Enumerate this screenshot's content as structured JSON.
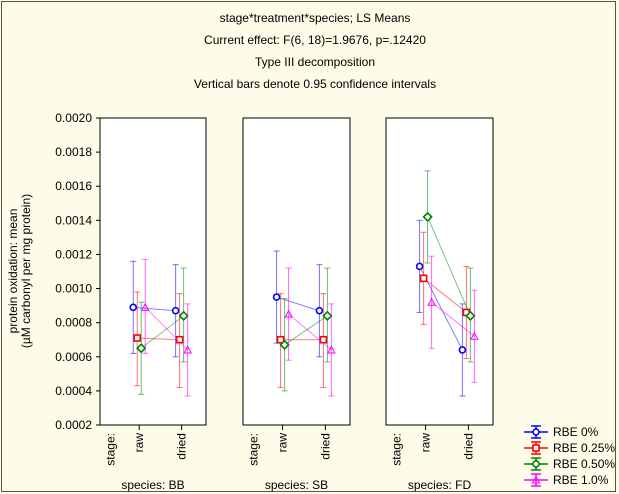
{
  "chart_data": {
    "type": "line",
    "title_lines": [
      "stage*treatment*species; LS Means",
      "Current effect: F(6, 18)=1.9676, p=.12420",
      "Type III decomposition",
      "Vertical bars denote 0.95 confidence intervals"
    ],
    "ylabel_lines": [
      "protein oxidation: mean",
      "(µM carbonyl per mg protein)"
    ],
    "ylim": [
      0.0002,
      0.002
    ],
    "yticks": [
      "0.0020",
      "0.0018",
      "0.0016",
      "0.0014",
      "0.0012",
      "0.0010",
      "0.0008",
      "0.0006",
      "0.0004",
      "0.0002"
    ],
    "stage_label": "stage:",
    "categories": [
      "raw",
      "dried"
    ],
    "panels": [
      {
        "label": "species: BB",
        "series": [
          {
            "name": "RBE 0%",
            "values": [
              0.00089,
              0.00087
            ],
            "ci_low": [
              0.00062,
              0.0006
            ],
            "ci_high": [
              0.00116,
              0.00114
            ]
          },
          {
            "name": "RBE 0.25%",
            "values": [
              0.00071,
              0.0007
            ],
            "ci_low": [
              0.00043,
              0.00042
            ],
            "ci_high": [
              0.00098,
              0.00097
            ]
          },
          {
            "name": "RBE 0.50%",
            "values": [
              0.00065,
              0.00084
            ],
            "ci_low": [
              0.00038,
              0.00057
            ],
            "ci_high": [
              0.00092,
              0.00112
            ]
          },
          {
            "name": "RBE 1.0%",
            "values": [
              0.00089,
              0.00064
            ],
            "ci_low": [
              0.00062,
              0.00037
            ],
            "ci_high": [
              0.00117,
              0.00091
            ]
          }
        ]
      },
      {
        "label": "species: SB",
        "series": [
          {
            "name": "RBE 0%",
            "values": [
              0.00095,
              0.00087
            ],
            "ci_low": [
              0.00068,
              0.0006
            ],
            "ci_high": [
              0.00122,
              0.00114
            ]
          },
          {
            "name": "RBE 0.25%",
            "values": [
              0.0007,
              0.0007
            ],
            "ci_low": [
              0.00042,
              0.00042
            ],
            "ci_high": [
              0.00097,
              0.00097
            ]
          },
          {
            "name": "RBE 0.50%",
            "values": [
              0.00067,
              0.00084
            ],
            "ci_low": [
              0.0004,
              0.00057
            ],
            "ci_high": [
              0.00094,
              0.00112
            ]
          },
          {
            "name": "RBE 1.0%",
            "values": [
              0.00085,
              0.00064
            ],
            "ci_low": [
              0.00058,
              0.00037
            ],
            "ci_high": [
              0.00112,
              0.00091
            ]
          }
        ]
      },
      {
        "label": "species: FD",
        "series": [
          {
            "name": "RBE 0%",
            "values": [
              0.00113,
              0.00064
            ],
            "ci_low": [
              0.00086,
              0.00037
            ],
            "ci_high": [
              0.0014,
              0.00091
            ]
          },
          {
            "name": "RBE 0.25%",
            "values": [
              0.00106,
              0.00086
            ],
            "ci_low": [
              0.00079,
              0.00059
            ],
            "ci_high": [
              0.00133,
              0.00113
            ]
          },
          {
            "name": "RBE 0.50%",
            "values": [
              0.00142,
              0.00084
            ],
            "ci_low": [
              0.00115,
              0.00057
            ],
            "ci_high": [
              0.00169,
              0.00112
            ]
          },
          {
            "name": "RBE 1.0%",
            "values": [
              0.00092,
              0.00072
            ],
            "ci_low": [
              0.00065,
              0.00045
            ],
            "ci_high": [
              0.00119,
              0.00099
            ]
          }
        ]
      }
    ],
    "legend": {
      "placement": "bottom-right",
      "items": [
        {
          "name": "RBE 0%",
          "color": "#0000ff",
          "marker": "circle"
        },
        {
          "name": "RBE 0.25%",
          "color": "#ff0000",
          "marker": "square"
        },
        {
          "name": "RBE 0.50%",
          "color": "#008000",
          "marker": "diamond"
        },
        {
          "name": "RBE 1.0%",
          "color": "#ff00ff",
          "marker": "triangle"
        }
      ]
    },
    "grid": false
  }
}
